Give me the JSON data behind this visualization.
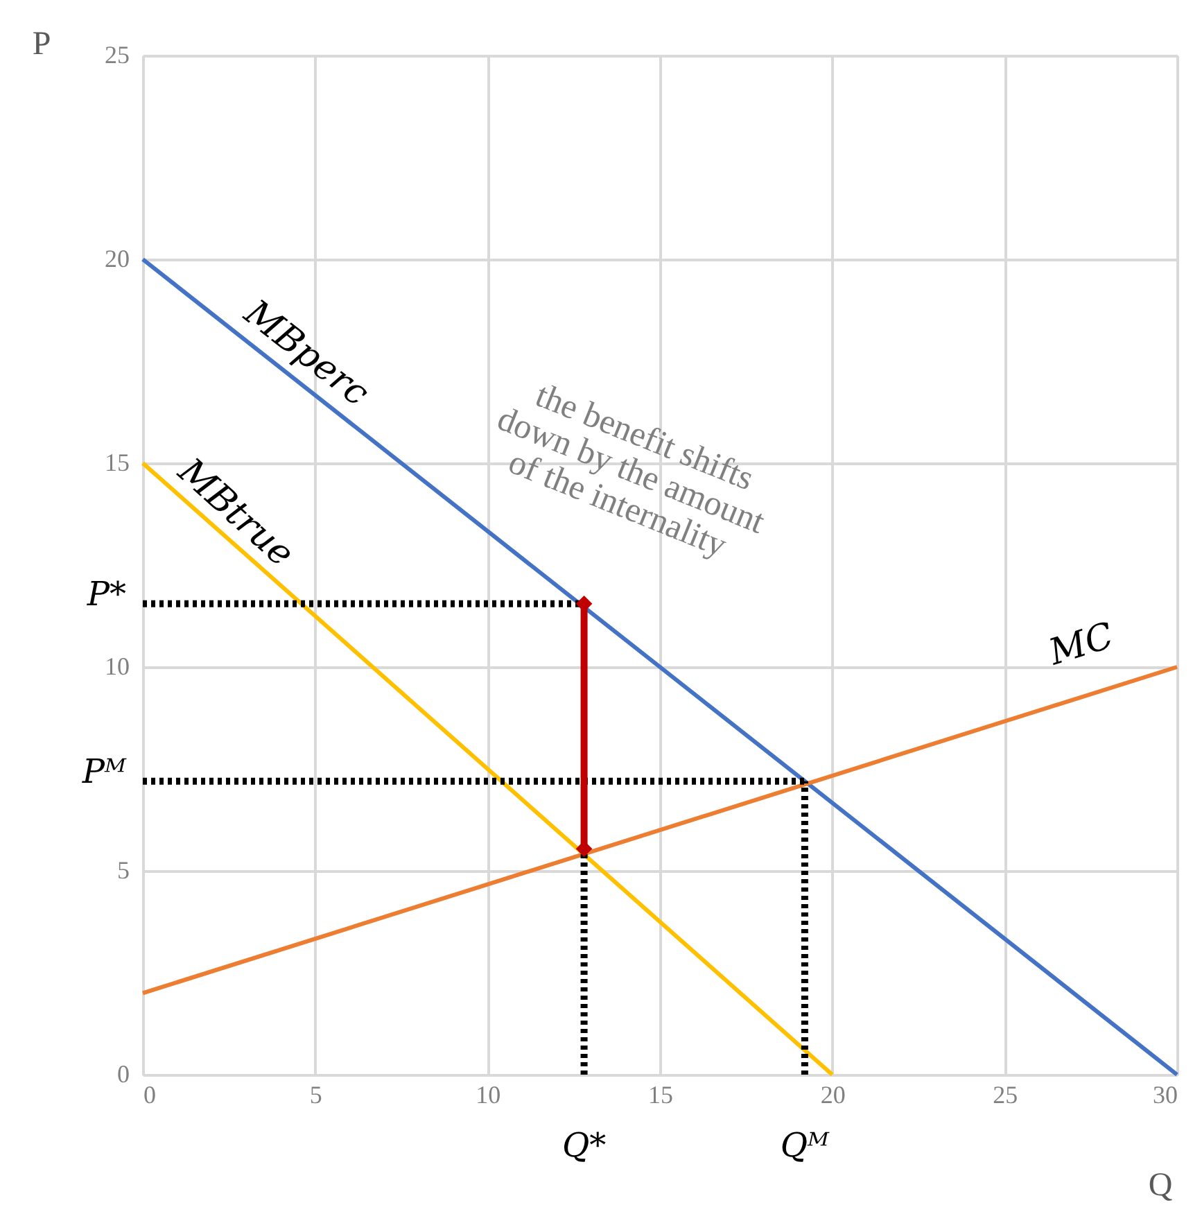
{
  "chart_data": {
    "type": "line",
    "xlabel": "Q",
    "ylabel": "P",
    "xlim": [
      0,
      30
    ],
    "ylim": [
      0,
      25
    ],
    "xticks": [
      0,
      5,
      10,
      15,
      20,
      25,
      30
    ],
    "yticks": [
      0,
      5,
      10,
      15,
      20,
      25
    ],
    "grid": true,
    "series": [
      {
        "color": "#4472c4",
        "x": [
          0,
          30
        ],
        "values": [
          20,
          0
        ],
        "marker": "none",
        "line_style": "solid"
      },
      {
        "color": "#ffc000",
        "x": [
          0,
          20
        ],
        "values": [
          15,
          0
        ],
        "marker": "none",
        "line_style": "solid"
      },
      {
        "color": "#ed7d31",
        "x": [
          0,
          30
        ],
        "values": [
          2,
          10
        ],
        "marker": "none",
        "line_style": "solid"
      },
      {
        "color": "#000000",
        "x": [
          0,
          12.8
        ],
        "values": [
          11.55,
          11.55
        ],
        "marker": "none",
        "line_style": "dotted"
      },
      {
        "color": "#000000",
        "x": [
          0,
          19.2
        ],
        "values": [
          7.2,
          7.2
        ],
        "marker": "none",
        "line_style": "dotted"
      },
      {
        "color": "#000000",
        "x": [
          12.8,
          12.8
        ],
        "values": [
          0,
          5.54
        ],
        "marker": "none",
        "line_style": "dotted"
      },
      {
        "color": "#000000",
        "x": [
          19.2,
          19.2
        ],
        "values": [
          0,
          7.2
        ],
        "marker": "none",
        "line_style": "dotted"
      },
      {
        "color": "#c00000",
        "x": [
          12.8,
          12.8
        ],
        "values": [
          5.54,
          11.55
        ],
        "marker": "diamond",
        "line_style": "solid"
      }
    ],
    "annotations": [
      "MBperc",
      "MBtrue",
      "MC",
      {
        "text": "P*",
        "x": 0,
        "y": 11.55
      },
      {
        "text": "Pᴹ",
        "x": 0,
        "y": 7.2
      },
      {
        "text": "Q*",
        "x": 12.8,
        "y": 0
      },
      {
        "text": "Qᴹ",
        "x": 19.2,
        "y": 0
      },
      "the benefit shifts\ndown by the amount\nof the internality"
    ]
  }
}
